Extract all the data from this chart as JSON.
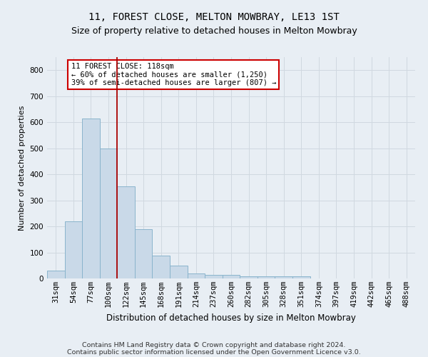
{
  "title1": "11, FOREST CLOSE, MELTON MOWBRAY, LE13 1ST",
  "title2": "Size of property relative to detached houses in Melton Mowbray",
  "xlabel": "Distribution of detached houses by size in Melton Mowbray",
  "ylabel": "Number of detached properties",
  "footer1": "Contains HM Land Registry data © Crown copyright and database right 2024.",
  "footer2": "Contains public sector information licensed under the Open Government Licence v3.0.",
  "bin_labels": [
    "31sqm",
    "54sqm",
    "77sqm",
    "100sqm",
    "122sqm",
    "145sqm",
    "168sqm",
    "191sqm",
    "214sqm",
    "237sqm",
    "260sqm",
    "282sqm",
    "305sqm",
    "328sqm",
    "351sqm",
    "374sqm",
    "397sqm",
    "419sqm",
    "442sqm",
    "465sqm",
    "488sqm"
  ],
  "bar_heights": [
    30,
    220,
    615,
    500,
    355,
    190,
    88,
    50,
    18,
    15,
    13,
    8,
    7,
    7,
    7,
    0,
    0,
    0,
    0,
    0,
    0
  ],
  "bar_color": "#c9d9e8",
  "bar_edge_color": "#8ab4cc",
  "vline_color": "#aa0000",
  "annotation_text": "11 FOREST CLOSE: 118sqm\n← 60% of detached houses are smaller (1,250)\n39% of semi-detached houses are larger (807) →",
  "annotation_box_color": "#ffffff",
  "annotation_box_edge": "#cc0000",
  "ylim": [
    0,
    850
  ],
  "yticks": [
    0,
    100,
    200,
    300,
    400,
    500,
    600,
    700,
    800
  ],
  "grid_color": "#d0d8e0",
  "bg_color": "#e8eef4",
  "title1_fontsize": 10,
  "title2_fontsize": 9,
  "xlabel_fontsize": 8.5,
  "ylabel_fontsize": 8,
  "tick_fontsize": 7.5,
  "annot_fontsize": 7.5,
  "footer_fontsize": 6.8
}
